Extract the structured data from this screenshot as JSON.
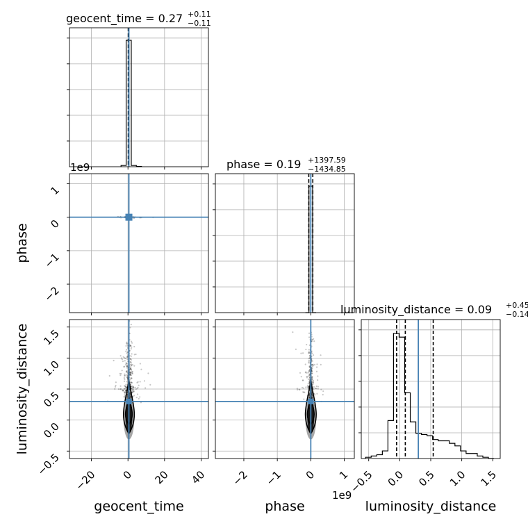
{
  "chart_data": {
    "type": "corner",
    "parameters": [
      "geocent_time",
      "phase",
      "luminosity_distance"
    ],
    "colors": {
      "truth": "#4682b4",
      "hist": "#000000",
      "grid": "#b0b0b0",
      "points": "#000000"
    },
    "titles": [
      {
        "name": "geocent_time",
        "median": "0.27",
        "plus": "+0.11",
        "minus": "−0.11"
      },
      {
        "name": "phase",
        "median": "0.19",
        "plus": "+1397.59",
        "minus": "−1434.85"
      },
      {
        "name": "luminosity_distance",
        "median": "0.09",
        "plus": "+0.45",
        "minus": "−0.14"
      }
    ],
    "offset_text": "1e9",
    "axes": {
      "geocent_time": {
        "range": [
          -32,
          44
        ],
        "ticks": [
          -20,
          0,
          20,
          40
        ],
        "tick_labels": [
          "−20",
          "0",
          "20",
          "40"
        ],
        "truth": 0.5,
        "quantiles": [
          0.16,
          0.27,
          0.38
        ]
      },
      "phase": {
        "range_e9": [
          -2.85,
          1.3
        ],
        "ticks_e9": [
          -2,
          -1,
          0,
          1
        ],
        "tick_labels": [
          "−2",
          "−1",
          "0",
          "1"
        ],
        "truth_e9": 0.0,
        "quantiles_e9": [
          -0.06,
          0.0,
          0.06
        ]
      },
      "luminosity_distance": {
        "range": [
          -0.62,
          1.62
        ],
        "ticks": [
          -0.5,
          0.0,
          0.5,
          1.0,
          1.5
        ],
        "tick_labels": [
          "−0.5",
          "0.0",
          "0.5",
          "1.0",
          "1.5"
        ],
        "truth": 0.3,
        "quantiles": [
          -0.05,
          0.09,
          0.54
        ]
      }
    },
    "hist_geocent_time": {
      "bin_edges": [
        -3.8,
        -1.0,
        1.8,
        4.6,
        7.4
      ],
      "counts": [
        0.01,
        1.0,
        0.01,
        0.002
      ]
    },
    "hist_phase": {
      "bin_edges_e9": [
        -0.16,
        -0.055,
        0.055,
        0.16
      ],
      "counts": [
        0.0,
        1.0,
        0.0
      ]
    },
    "hist_luminosity_distance": {
      "bin_edges": [
        -0.55,
        -0.46,
        -0.37,
        -0.28,
        -0.19,
        -0.1,
        -0.01,
        0.08,
        0.17,
        0.26,
        0.35,
        0.44,
        0.53,
        0.62,
        0.71,
        0.8,
        0.89,
        0.98,
        1.07,
        1.16,
        1.25,
        1.34,
        1.43,
        1.52
      ],
      "counts": [
        0.01,
        0.02,
        0.03,
        0.06,
        0.3,
        0.99,
        0.96,
        0.52,
        0.29,
        0.2,
        0.19,
        0.18,
        0.15,
        0.14,
        0.14,
        0.12,
        0.1,
        0.06,
        0.04,
        0.04,
        0.02,
        0.01,
        0.0
      ]
    },
    "levels": {
      "outer_ld": [
        -0.2,
        0.55
      ],
      "inner_ld": [
        -0.05,
        0.35
      ]
    }
  }
}
